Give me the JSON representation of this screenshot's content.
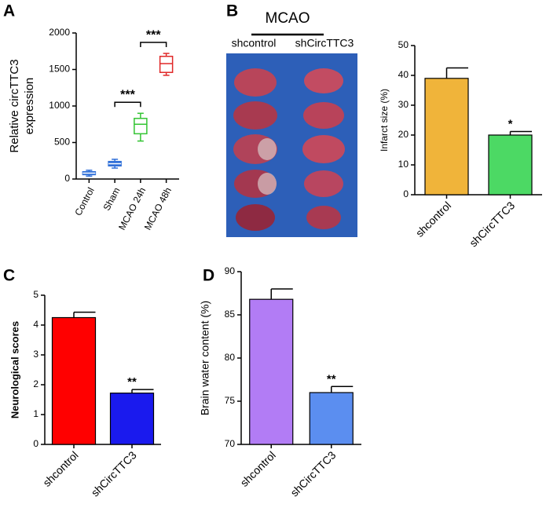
{
  "panel_labels": [
    "A",
    "B",
    "C",
    "D"
  ],
  "photo": {
    "title": "MCAO",
    "groups": [
      "shcontrol",
      "shCircTTC3"
    ]
  },
  "chart_data": [
    {
      "type": "box",
      "ylabel": "Relative circTTC3 expression",
      "categories": [
        "Control",
        "Sham",
        "MCAO 24h",
        "MCAO 48h"
      ],
      "min": [
        40,
        150,
        520,
        1420
      ],
      "q1": [
        60,
        180,
        620,
        1460
      ],
      "median": [
        80,
        210,
        750,
        1580
      ],
      "q3": [
        100,
        240,
        830,
        1680
      ],
      "max": [
        120,
        270,
        900,
        1720
      ],
      "colors": [
        "#2f6fd8",
        "#2f6fd8",
        "#33c433",
        "#e02828"
      ],
      "annotations": [
        "***",
        "***"
      ],
      "ylim": [
        0,
        2000
      ],
      "yticks": [
        0,
        500,
        1000,
        1500,
        2000
      ]
    },
    {
      "type": "bar",
      "ylabel": "Infarct size (%)",
      "categories": [
        "shcontrol",
        "shCircTTC3"
      ],
      "values": [
        39,
        20
      ],
      "errors": [
        3.5,
        1.2
      ],
      "colors": [
        "#f0b43a",
        "#4cd964"
      ],
      "annotation": "*",
      "ylim": [
        0,
        50
      ],
      "yticks": [
        0,
        10,
        20,
        30,
        40,
        50
      ]
    },
    {
      "type": "bar",
      "ylabel": "Neurological scores",
      "categories": [
        "shcontrol",
        "shCircTTC3"
      ],
      "values": [
        4.25,
        1.72
      ],
      "errors": [
        0.18,
        0.12
      ],
      "colors": [
        "#ff0000",
        "#1a1aee"
      ],
      "annotation": "**",
      "ylim": [
        0,
        5
      ],
      "yticks": [
        0,
        1,
        2,
        3,
        4,
        5
      ]
    },
    {
      "type": "bar",
      "ylabel": "Brain water content (%)",
      "categories": [
        "shcontrol",
        "shCircTTC3"
      ],
      "values": [
        86.8,
        76
      ],
      "errors": [
        1.2,
        0.7
      ],
      "colors": [
        "#b27cf5",
        "#5b8ef0"
      ],
      "annotation": "**",
      "ylim": [
        70,
        90
      ],
      "yticks": [
        70,
        75,
        80,
        85,
        90
      ]
    }
  ]
}
